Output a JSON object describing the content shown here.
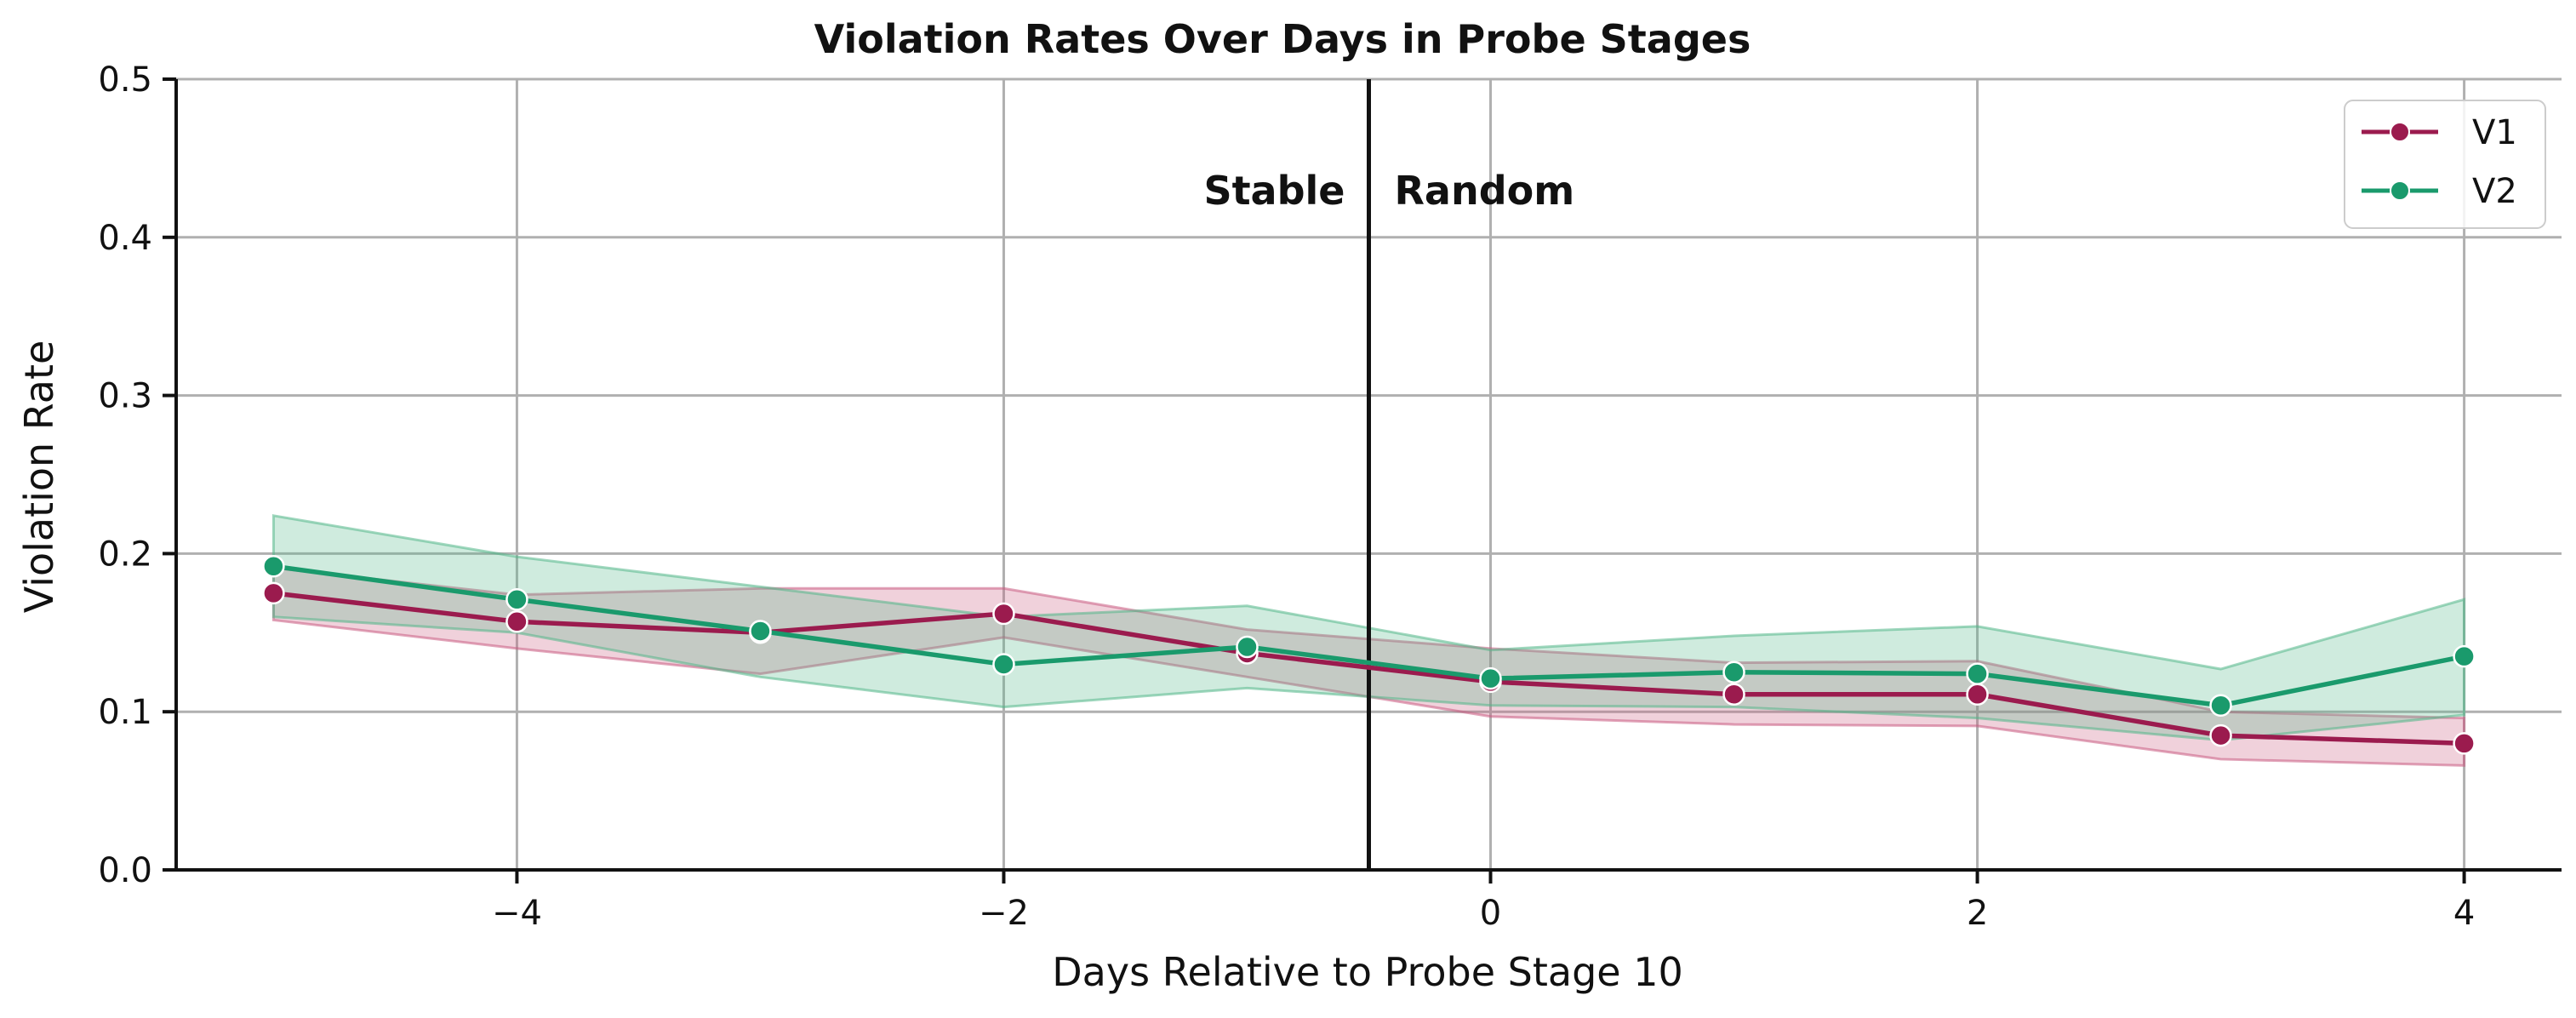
{
  "chart_data": {
    "type": "line",
    "title": "Violation Rates Over Days in Probe Stages",
    "xlabel": "Days Relative to Probe Stage 10",
    "ylabel": "Violation Rate",
    "xlim": [
      -5.4,
      4.4
    ],
    "ylim": [
      0,
      0.5
    ],
    "xticks": [
      -4,
      -2,
      0,
      2,
      4
    ],
    "xtick_labels": [
      "−4",
      "−2",
      "0",
      "2",
      "4"
    ],
    "yticks": [
      0.0,
      0.1,
      0.2,
      0.3,
      0.4,
      0.5
    ],
    "ytick_labels": [
      "0.0",
      "0.1",
      "0.2",
      "0.3",
      "0.4",
      "0.5"
    ],
    "grid": true,
    "legend_position": "top-right",
    "x": [
      -5,
      -4,
      -3,
      -2,
      -1,
      0,
      1,
      2,
      3,
      4
    ],
    "vline": {
      "x": -0.5,
      "left_label": "Stable",
      "right_label": "Random"
    },
    "series": [
      {
        "name": "V1",
        "color": "#9b1b4e",
        "band_color": "#c9597f",
        "values": [
          0.175,
          0.157,
          0.15,
          0.162,
          0.137,
          0.119,
          0.111,
          0.111,
          0.085,
          0.08
        ],
        "lower": [
          0.158,
          0.14,
          0.124,
          0.147,
          0.122,
          0.097,
          0.092,
          0.091,
          0.07,
          0.066
        ],
        "upper": [
          0.191,
          0.174,
          0.178,
          0.178,
          0.152,
          0.14,
          0.131,
          0.132,
          0.1,
          0.096
        ]
      },
      {
        "name": "V2",
        "color": "#1a9a6c",
        "band_color": "#52b788",
        "values": [
          0.192,
          0.171,
          0.151,
          0.13,
          0.141,
          0.121,
          0.125,
          0.124,
          0.104,
          0.135
        ],
        "lower": [
          0.16,
          0.15,
          0.122,
          0.103,
          0.115,
          0.104,
          0.103,
          0.096,
          0.082,
          0.098
        ],
        "upper": [
          0.224,
          0.198,
          0.179,
          0.16,
          0.167,
          0.139,
          0.148,
          0.154,
          0.127,
          0.171
        ]
      }
    ]
  }
}
